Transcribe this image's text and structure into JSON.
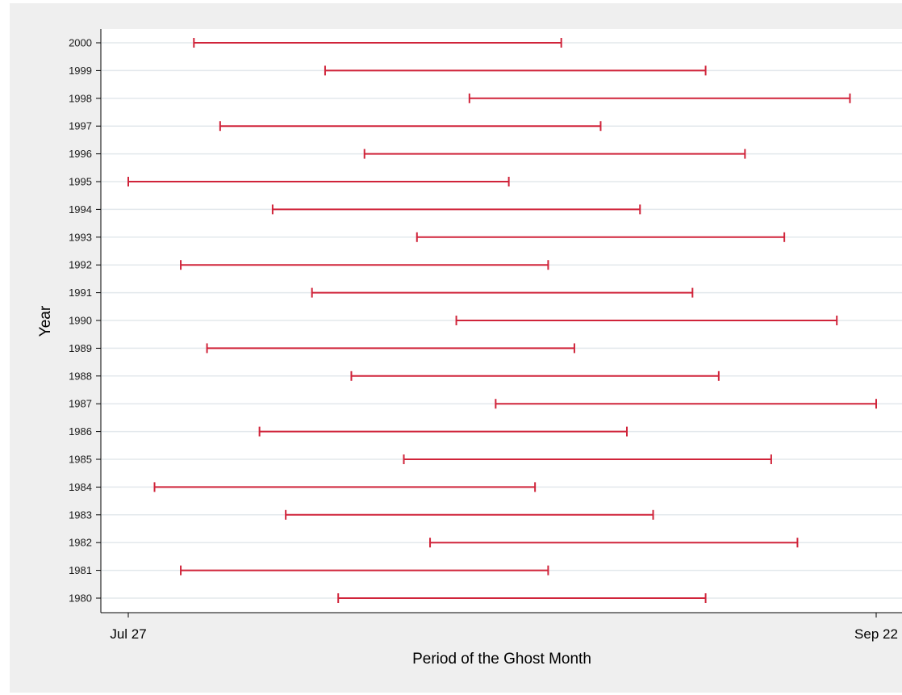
{
  "chart_data": {
    "type": "range",
    "title": "",
    "xlabel": "Period of the Ghost Month",
    "ylabel": "Year",
    "x_ticks": [
      "Jul 27",
      "Sep 22"
    ],
    "xlim": [
      "Jul 27",
      "Sep 22"
    ],
    "grid": "horizontal",
    "color": "#d0243a",
    "series": [
      {
        "year": "1980",
        "start": "Aug 12",
        "end": "Sep 9"
      },
      {
        "year": "1981",
        "start": "Jul 31",
        "end": "Aug 28"
      },
      {
        "year": "1982",
        "start": "Aug 19",
        "end": "Sep 16"
      },
      {
        "year": "1983",
        "start": "Aug 8",
        "end": "Sep 5"
      },
      {
        "year": "1984",
        "start": "Jul 29",
        "end": "Aug 27"
      },
      {
        "year": "1985",
        "start": "Aug 17",
        "end": "Sep 14"
      },
      {
        "year": "1986",
        "start": "Aug 6",
        "end": "Sep 3"
      },
      {
        "year": "1987",
        "start": "Aug 24",
        "end": "Sep 22"
      },
      {
        "year": "1988",
        "start": "Aug 13",
        "end": "Sep 10"
      },
      {
        "year": "1989",
        "start": "Aug 2",
        "end": "Aug 30"
      },
      {
        "year": "1990",
        "start": "Aug 21",
        "end": "Sep 19"
      },
      {
        "year": "1991",
        "start": "Aug 10",
        "end": "Sep 8"
      },
      {
        "year": "1992",
        "start": "Jul 31",
        "end": "Aug 28"
      },
      {
        "year": "1993",
        "start": "Aug 18",
        "end": "Sep 15"
      },
      {
        "year": "1994",
        "start": "Aug 7",
        "end": "Sep 4"
      },
      {
        "year": "1995",
        "start": "Jul 27",
        "end": "Aug 25"
      },
      {
        "year": "1996",
        "start": "Aug 14",
        "end": "Sep 12"
      },
      {
        "year": "1997",
        "start": "Aug 3",
        "end": "Sep 1"
      },
      {
        "year": "1998",
        "start": "Aug 22",
        "end": "Sep 20"
      },
      {
        "year": "1999",
        "start": "Aug 11",
        "end": "Sep 9"
      },
      {
        "year": "2000",
        "start": "Aug 1",
        "end": "Aug 29"
      }
    ]
  }
}
